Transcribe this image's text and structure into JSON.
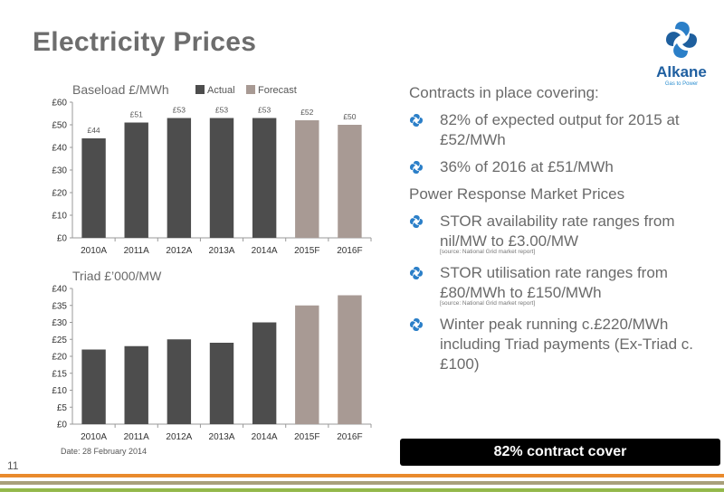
{
  "slide": {
    "title": "Electricity Prices",
    "page_number": "11",
    "date": "Date:  28 February 2014",
    "banner": "82% contract cover",
    "logo": {
      "name": "Alkane",
      "tagline": "Gas to Power"
    }
  },
  "panel": {
    "heading1": "Contracts in place covering:",
    "contracts": [
      "82% of expected output for 2015 at £52/MWh",
      "36% of 2016 at £51/MWh"
    ],
    "heading2": "Power Response Market Prices",
    "stor_availability": "STOR availability rate ranges from nil/MW to £3.00/MW",
    "stor_availability_source": "[source: National Grid market report]",
    "stor_utilisation": "STOR utilisation rate ranges from £80/MWh to £150/MWh",
    "stor_utilisation_source": "[source: National Grid market report]",
    "winter_peak": "Winter peak running c.£220/MWh including Triad payments (Ex-Triad c.£100)"
  },
  "colors": {
    "actual": "#4d4d4d",
    "forecast": "#a89a94",
    "text": "#6a6a6a",
    "stripe_orange": "#e98a2c",
    "stripe_olive": "#a9a07a",
    "stripe_green": "#93b84a"
  },
  "chart_data": [
    {
      "type": "bar",
      "title": "Baseload £/MWh",
      "categories": [
        "2010A",
        "2011A",
        "2012A",
        "2013A",
        "2014A",
        "2015F",
        "2016F"
      ],
      "values": [
        44,
        51,
        53,
        53,
        53,
        52,
        50
      ],
      "data_labels": [
        "£44",
        "£51",
        "£53",
        "£53",
        "£53",
        "£52",
        "£50"
      ],
      "kind": [
        "actual",
        "actual",
        "actual",
        "actual",
        "actual",
        "forecast",
        "forecast"
      ],
      "legend": [
        "Actual",
        "Forecast"
      ],
      "legend_position": "top",
      "ylim": [
        0,
        60
      ],
      "yticks": [
        0,
        10,
        20,
        30,
        40,
        50,
        60
      ],
      "ytick_labels": [
        "£0",
        "£10",
        "£20",
        "£30",
        "£40",
        "£50",
        "£60"
      ],
      "grid": false
    },
    {
      "type": "bar",
      "title": "Triad £’000/MW",
      "categories": [
        "2010A",
        "2011A",
        "2012A",
        "2013A",
        "2014A",
        "2015F",
        "2016F"
      ],
      "values": [
        22,
        23,
        25,
        24,
        30,
        35,
        38
      ],
      "kind": [
        "actual",
        "actual",
        "actual",
        "actual",
        "actual",
        "forecast",
        "forecast"
      ],
      "ylim": [
        0,
        40
      ],
      "yticks": [
        0,
        5,
        10,
        15,
        20,
        25,
        30,
        35,
        40
      ],
      "ytick_labels": [
        "£0",
        "£5",
        "£10",
        "£15",
        "£20",
        "£25",
        "£30",
        "£35",
        "£40"
      ],
      "grid": false
    }
  ]
}
